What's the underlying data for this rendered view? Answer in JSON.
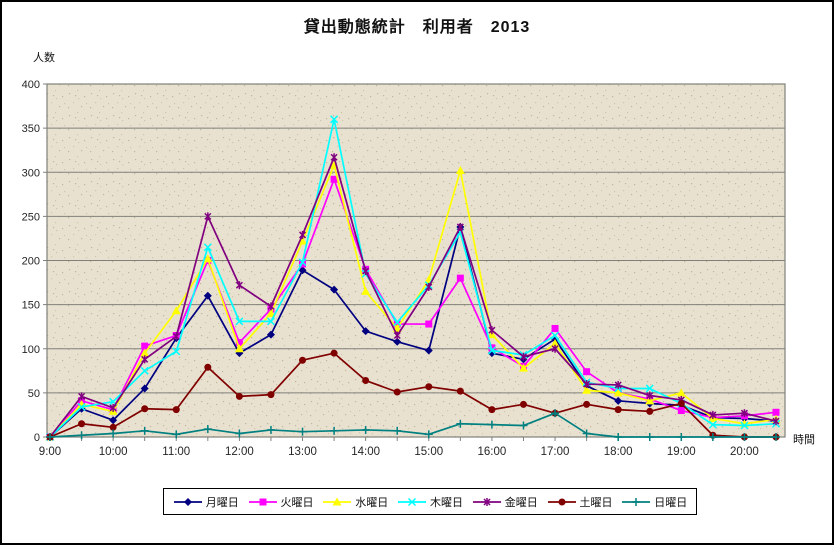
{
  "window": {
    "background": "#ffffff",
    "border_color": "#000000"
  },
  "chart_data": {
    "type": "line",
    "title": "貸出動態統計　利用者　2013",
    "ylabel": "人数",
    "xlabel": "時間",
    "ylim": [
      0,
      400
    ],
    "ytick_step": 50,
    "grid": true,
    "legend_position": "bottom",
    "plot_bg": "#e9e1d0",
    "grid_color": "#80807a",
    "tick_text_color": "#262626",
    "y_tick_labels": [
      "0",
      "50",
      "100",
      "150",
      "200",
      "250",
      "300",
      "350",
      "400"
    ],
    "x_tick_labels": [
      "9:00",
      "10:00",
      "11:00",
      "12:00",
      "13:00",
      "14:00",
      "15:00",
      "16:00",
      "17:00",
      "18:00",
      "19:00",
      "20:00"
    ],
    "categories": [
      "9:00",
      "9:30",
      "10:00",
      "10:30",
      "11:00",
      "11:30",
      "12:00",
      "12:30",
      "13:00",
      "13:30",
      "14:00",
      "14:30",
      "15:00",
      "15:30",
      "16:00",
      "16:30",
      "17:00",
      "17:30",
      "18:00",
      "18:30",
      "19:00",
      "19:30",
      "20:00",
      "20:30"
    ],
    "series": [
      {
        "key": "monday",
        "name": "月曜日",
        "color": "#000080",
        "marker": "diamond",
        "values": [
          0,
          32,
          19,
          55,
          112,
          160,
          95,
          116,
          189,
          167,
          120,
          108,
          98,
          238,
          95,
          88,
          111,
          58,
          41,
          38,
          36,
          22,
          21,
          18
        ]
      },
      {
        "key": "tuesday",
        "name": "火曜日",
        "color": "#ff00ff",
        "marker": "square",
        "values": [
          0,
          41,
          31,
          103,
          115,
          200,
          107,
          145,
          196,
          292,
          190,
          128,
          128,
          180,
          101,
          80,
          123,
          74,
          50,
          43,
          30,
          22,
          24,
          28
        ]
      },
      {
        "key": "wednesday",
        "name": "水曜日",
        "color": "#ffff00",
        "marker": "triangle",
        "values": [
          0,
          37,
          29,
          95,
          143,
          202,
          100,
          140,
          222,
          308,
          165,
          123,
          178,
          302,
          116,
          78,
          106,
          53,
          50,
          41,
          50,
          21,
          15,
          20
        ]
      },
      {
        "key": "thursday",
        "name": "木曜日",
        "color": "#00ffff",
        "marker": "x",
        "values": [
          0,
          34,
          40,
          75,
          97,
          215,
          131,
          131,
          198,
          360,
          185,
          130,
          172,
          232,
          98,
          93,
          115,
          62,
          55,
          55,
          38,
          14,
          13,
          15
        ]
      },
      {
        "key": "friday",
        "name": "金曜日",
        "color": "#800080",
        "marker": "asterisk",
        "values": [
          0,
          46,
          33,
          88,
          114,
          250,
          172,
          148,
          229,
          317,
          188,
          115,
          170,
          238,
          121,
          91,
          100,
          60,
          59,
          47,
          42,
          25,
          27,
          18
        ]
      },
      {
        "key": "saturday",
        "name": "土曜日",
        "color": "#800000",
        "marker": "circle",
        "values": [
          0,
          15,
          11,
          32,
          31,
          79,
          46,
          48,
          87,
          95,
          64,
          51,
          57,
          52,
          31,
          37,
          27,
          37,
          31,
          29,
          38,
          2,
          0,
          0
        ]
      },
      {
        "key": "sunday",
        "name": "日曜日",
        "color": "#008080",
        "marker": "plus",
        "values": [
          0,
          2,
          4,
          7,
          3,
          9,
          4,
          8,
          6,
          7,
          8,
          7,
          3,
          15,
          14,
          13,
          27,
          4,
          0,
          0,
          0,
          0,
          0,
          0
        ]
      }
    ]
  }
}
